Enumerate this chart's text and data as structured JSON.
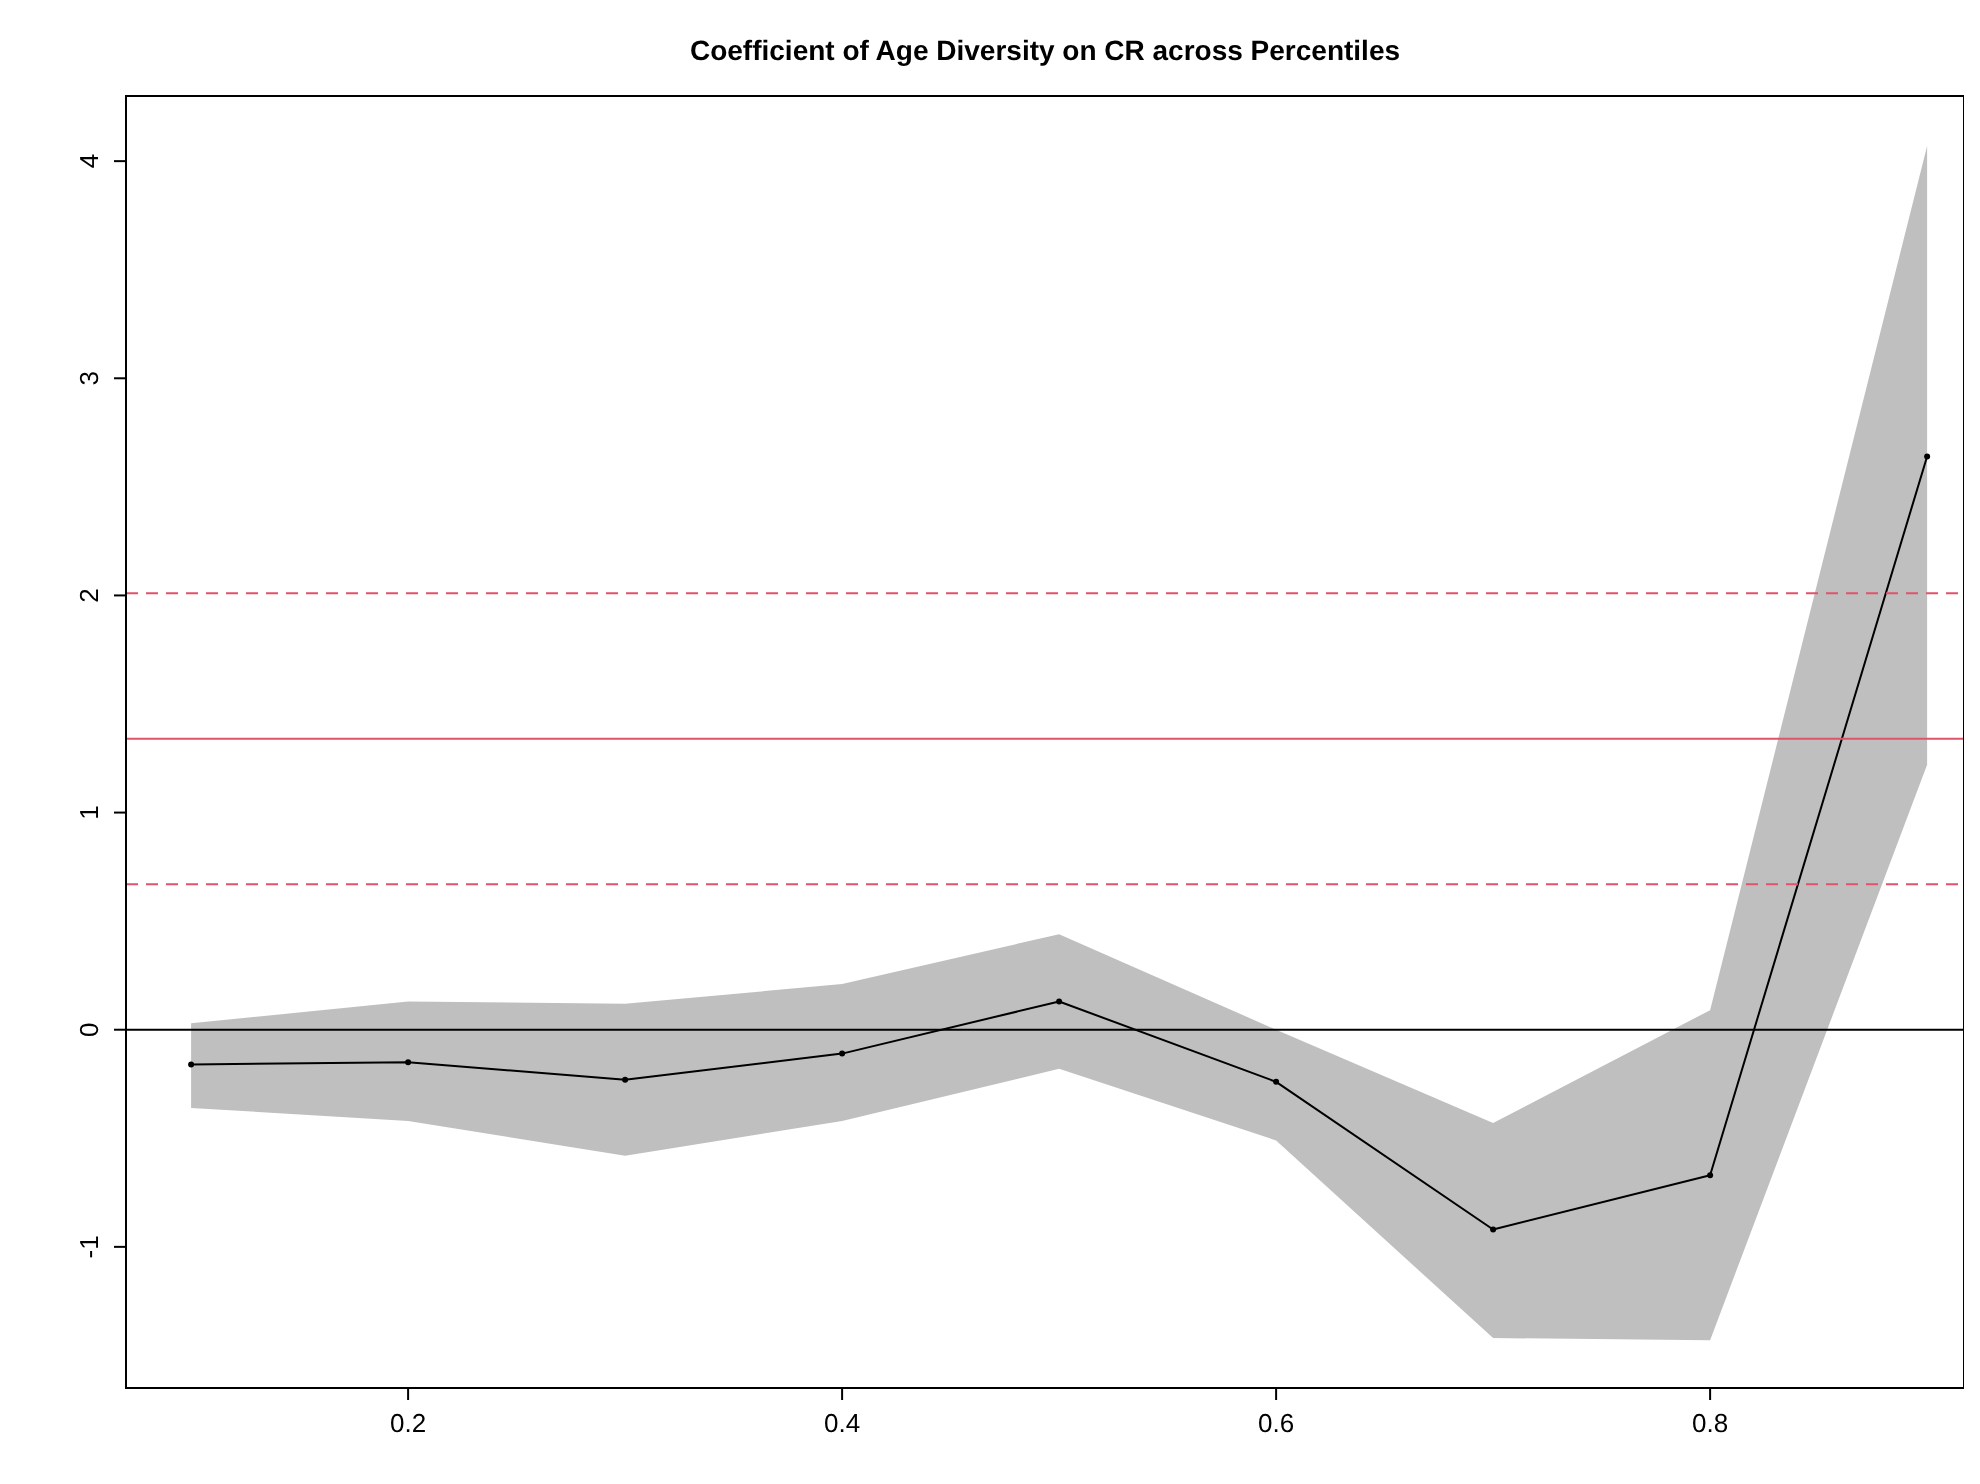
{
  "chart_data": {
    "type": "line",
    "title": "Coefficient of Age Diversity on CR across Percentiles",
    "x": [
      0.1,
      0.2,
      0.3,
      0.4,
      0.5,
      0.6,
      0.7,
      0.8,
      0.9
    ],
    "series": [
      {
        "color": "#000000",
        "values": [
          -0.16,
          -0.15,
          -0.23,
          -0.11,
          0.13,
          -0.24,
          -0.92,
          -0.67,
          2.64
        ],
        "lower": [
          -0.36,
          -0.42,
          -0.58,
          -0.42,
          -0.18,
          -0.51,
          -1.42,
          -1.43,
          1.22
        ],
        "upper": [
          0.03,
          0.13,
          0.12,
          0.21,
          0.44,
          0.0,
          -0.43,
          0.09,
          4.07
        ]
      }
    ],
    "xlim": [
      0.07,
      0.917
    ],
    "xticks": [
      0.2,
      0.4,
      0.6,
      0.8
    ],
    "ylim": [
      -1.65,
      4.3
    ],
    "yticks": [
      -1,
      0,
      1,
      2,
      3,
      4
    ],
    "ref_lines": [
      {
        "axis": "y",
        "value": 0,
        "color": "#000000",
        "line_style": "solid"
      },
      {
        "axis": "y",
        "value": 1.34,
        "color": "#df536b",
        "line_style": "solid"
      },
      {
        "axis": "y",
        "value": 2.01,
        "color": "#df536b",
        "line_style": "dashed"
      },
      {
        "axis": "y",
        "value": 0.67,
        "color": "#df536b",
        "line_style": "dashed"
      }
    ],
    "marker": "circle",
    "line_style": "solid",
    "grid": false
  }
}
